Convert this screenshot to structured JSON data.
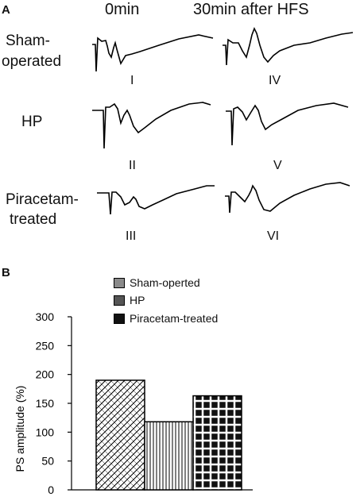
{
  "panel_a": {
    "label": "A",
    "columns": [
      "0min",
      "30min after HFS"
    ],
    "rows": [
      {
        "label_lines": [
          "Sham-",
          "operated"
        ],
        "numerals": [
          "I",
          "IV"
        ]
      },
      {
        "label_lines": [
          "HP"
        ],
        "numerals": [
          "II",
          "V"
        ]
      },
      {
        "label_lines": [
          "Piracetam-",
          "treated"
        ],
        "numerals": [
          "III",
          "VI"
        ]
      }
    ]
  },
  "panel_b": {
    "label": "B"
  },
  "chart_data": {
    "type": "bar",
    "title": "",
    "xlabel": "",
    "ylabel": "PS amplitude (%)",
    "ylim": [
      0,
      300
    ],
    "yticks": [
      0,
      50,
      100,
      150,
      200,
      250,
      300
    ],
    "grid": false,
    "legend_position": "top-center",
    "series": [
      {
        "name": "Sham-operted",
        "value": 190,
        "pattern": "diagonal-crosshatch",
        "legend_color": "#8a8a8a"
      },
      {
        "name": "HP",
        "value": 118,
        "pattern": "vertical-lines",
        "legend_color": "#555555"
      },
      {
        "name": "Piracetam-treated",
        "value": 163,
        "pattern": "white-grid-on-black",
        "legend_color": "#111111"
      }
    ]
  }
}
